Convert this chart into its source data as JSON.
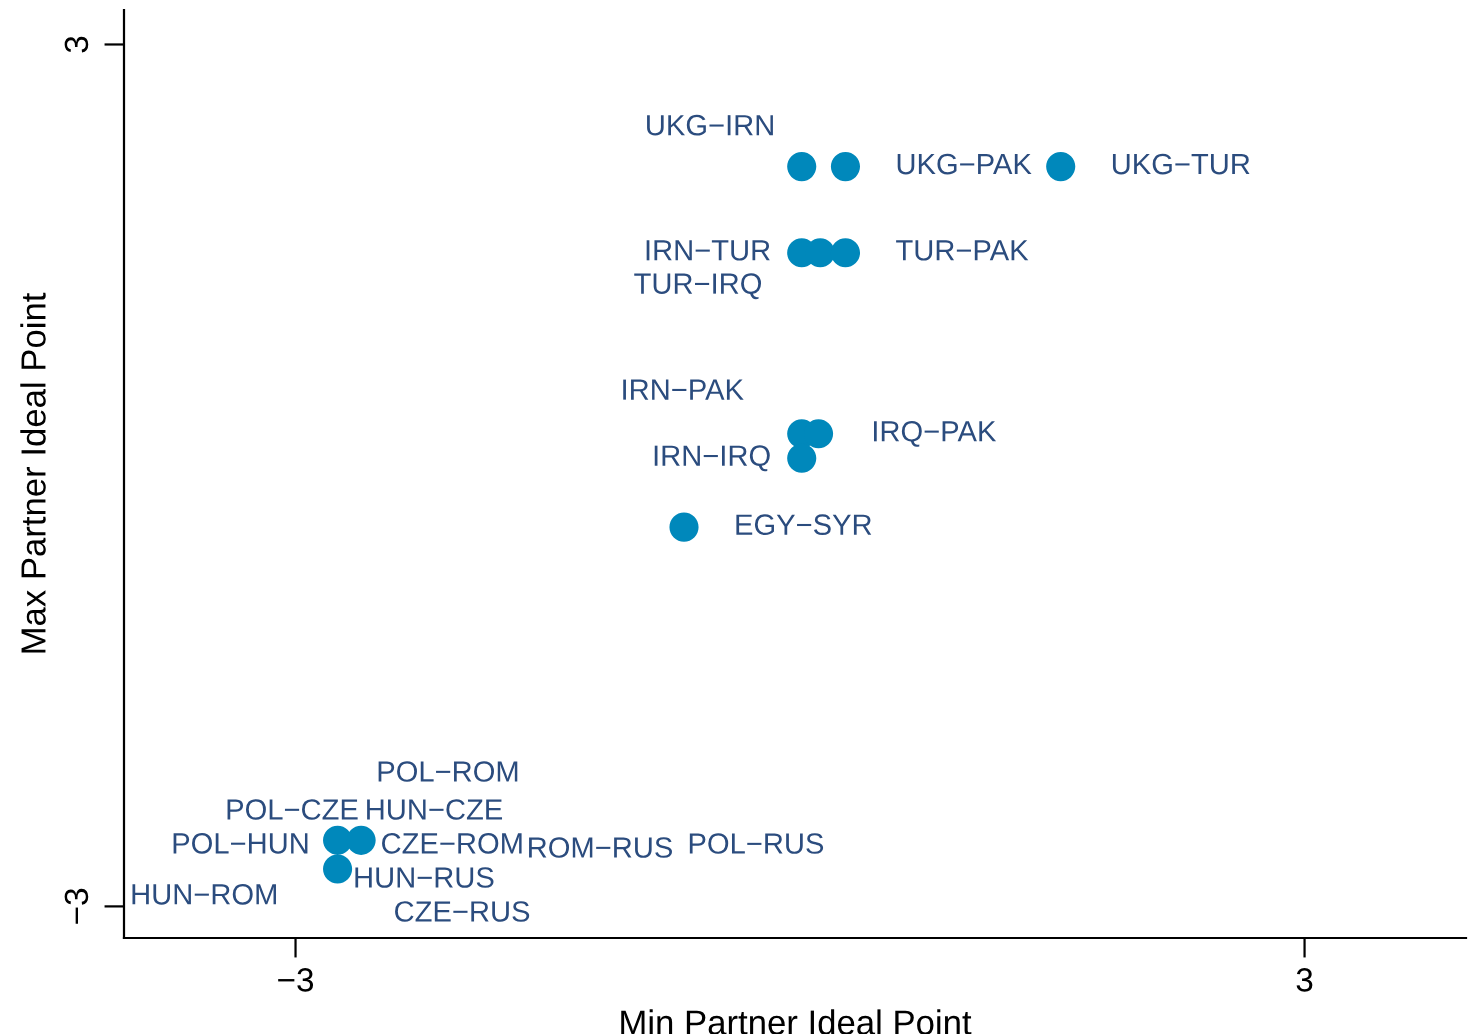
{
  "chart_data": {
    "type": "scatter",
    "xlabel": "Min Partner Ideal Point",
    "ylabel": "Max Partner Ideal Point",
    "color": "#0088bb",
    "x": [
      0.01,
      0.27,
      1.55,
      0.01,
      0.12,
      0.27,
      0.01,
      0.11,
      0.01,
      -0.69,
      -2.75,
      -2.61,
      -2.75
    ],
    "values": [
      2.15,
      2.15,
      2.15,
      1.55,
      1.55,
      1.55,
      0.29,
      0.29,
      0.12,
      -0.36,
      -2.54,
      -2.54,
      -2.74
    ],
    "annotations": [
      {
        "text": "UKG−IRN",
        "x": 0.01,
        "y": 2.15
      },
      {
        "text": "UKG−PAK",
        "x": 0.27,
        "y": 2.15
      },
      {
        "text": "UKG−TUR",
        "x": 1.55,
        "y": 2.15
      },
      {
        "text": "IRN−TUR",
        "x": 0.01,
        "y": 1.55
      },
      {
        "text": "TUR−IRQ",
        "x": 0.12,
        "y": 1.55
      },
      {
        "text": "TUR−PAK",
        "x": 0.27,
        "y": 1.55
      },
      {
        "text": "IRN−PAK",
        "x": 0.01,
        "y": 0.29
      },
      {
        "text": "IRQ−PAK",
        "x": 0.11,
        "y": 0.29
      },
      {
        "text": "IRN−IRQ",
        "x": 0.01,
        "y": 0.12
      },
      {
        "text": "EGY−SYR",
        "x": -0.69,
        "y": -0.36
      },
      {
        "text": "POL−HUN",
        "x": -2.75,
        "y": -2.54
      },
      {
        "text": "CZE−ROM",
        "x": -2.61,
        "y": -2.54
      },
      {
        "text": "HUN−ROM",
        "x": -2.75,
        "y": -2.74
      },
      "POL−ROM",
      "POL−CZE",
      "HUN−CZE",
      "ROM−RUS",
      "POL−RUS",
      "HUN−RUS",
      "CZE−RUS"
    ],
    "xlim": [
      -4.02,
      3.96
    ],
    "ylim": [
      -3.22,
      3.24
    ],
    "xticks": [
      {
        "value": -3,
        "label": "−3"
      },
      3
    ],
    "yticks": [
      {
        "value": -3,
        "label": "−3"
      },
      3
    ],
    "grid": false,
    "legend": false
  }
}
